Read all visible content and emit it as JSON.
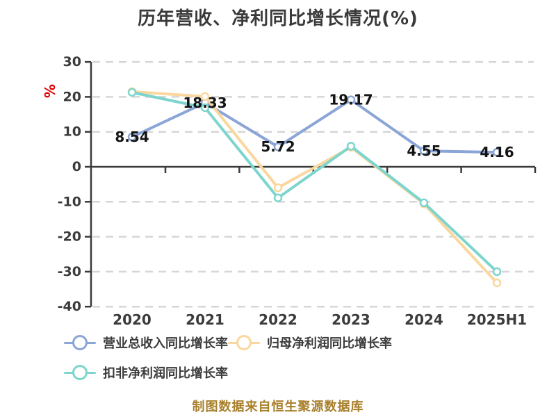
{
  "title": "历年营收、净利同比增长情况(%)",
  "y_axis_unit": "%",
  "y_tick_labels": [
    "30",
    "20",
    "10",
    "0",
    "-10",
    "-20",
    "-30",
    "-40"
  ],
  "footer": "制图数据来自恒生聚源数据库",
  "legend": {
    "items": [
      {
        "label": "营业总收入同比增长率",
        "color": "#8AA5D6"
      },
      {
        "label": "归母净利润同比增长率",
        "color": "#FAD79E"
      },
      {
        "label": "扣非净利润同比增长率",
        "color": "#7DD5CE"
      }
    ]
  },
  "chart_data": {
    "type": "line",
    "title": "历年营收、净利同比增长情况(%)",
    "categories": [
      "2020",
      "2021",
      "2022",
      "2023",
      "2024",
      "2025H1"
    ],
    "series": [
      {
        "name": "营业总收入同比增长率",
        "color": "#8AA5D6",
        "values": [
          8.54,
          18.33,
          5.72,
          19.17,
          4.55,
          4.16
        ],
        "values_estimated": false
      },
      {
        "name": "归母净利润同比增长率",
        "color": "#FAD79E",
        "values": [
          21.5,
          20.1,
          -6.0,
          5.6,
          -10.6,
          -33.2
        ],
        "values_estimated": true
      },
      {
        "name": "扣非净利润同比增长率",
        "color": "#7DD5CE",
        "values": [
          21.3,
          16.9,
          -8.9,
          5.9,
          -10.3,
          -30.0
        ],
        "values_estimated": true
      }
    ],
    "data_labels": [
      "8.54",
      "18.33",
      "5.72",
      "19.17",
      "4.55",
      "4.16"
    ],
    "data_label_series": "营业总收入同比增长率",
    "ylim": [
      -40,
      30
    ],
    "ytick_step": 10,
    "grid": "horizontal-dashed",
    "legend_position": "bottom-left-two-rows"
  },
  "colors": {
    "background": "#FFFFFF",
    "grid": "#D6D6D6",
    "axis": "#3A3A3A",
    "tick_text": "#3B3B3B",
    "data_label_text": "#141414",
    "unit_symbol": "#E00000",
    "footer_text": "#A87F2A"
  }
}
